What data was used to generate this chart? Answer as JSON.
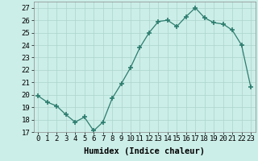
{
  "x": [
    0,
    1,
    2,
    3,
    4,
    5,
    6,
    7,
    8,
    9,
    10,
    11,
    12,
    13,
    14,
    15,
    16,
    17,
    18,
    19,
    20,
    21,
    22,
    23
  ],
  "y": [
    19.9,
    19.4,
    19.1,
    18.4,
    17.8,
    18.2,
    17.1,
    17.8,
    19.7,
    20.9,
    22.2,
    23.8,
    25.0,
    25.9,
    26.0,
    25.5,
    26.3,
    27.0,
    26.2,
    25.8,
    25.7,
    25.2,
    24.0,
    20.6
  ],
  "line_color": "#2d7d6e",
  "marker_color": "#2d7d6e",
  "bg_color": "#cceee8",
  "grid_color": "#aad4cc",
  "xlabel": "Humidex (Indice chaleur)",
  "ylabel_ticks": [
    17,
    18,
    19,
    20,
    21,
    22,
    23,
    24,
    25,
    26,
    27
  ],
  "xlim": [
    -0.5,
    23.5
  ],
  "ylim": [
    17,
    27.5
  ],
  "xtick_labels": [
    "0",
    "1",
    "2",
    "3",
    "4",
    "5",
    "6",
    "7",
    "8",
    "9",
    "10",
    "11",
    "12",
    "13",
    "14",
    "15",
    "16",
    "17",
    "18",
    "19",
    "20",
    "21",
    "22",
    "23"
  ],
  "tick_fontsize": 6.5,
  "xlabel_fontsize": 7.5,
  "xlabel_fontweight": "bold"
}
